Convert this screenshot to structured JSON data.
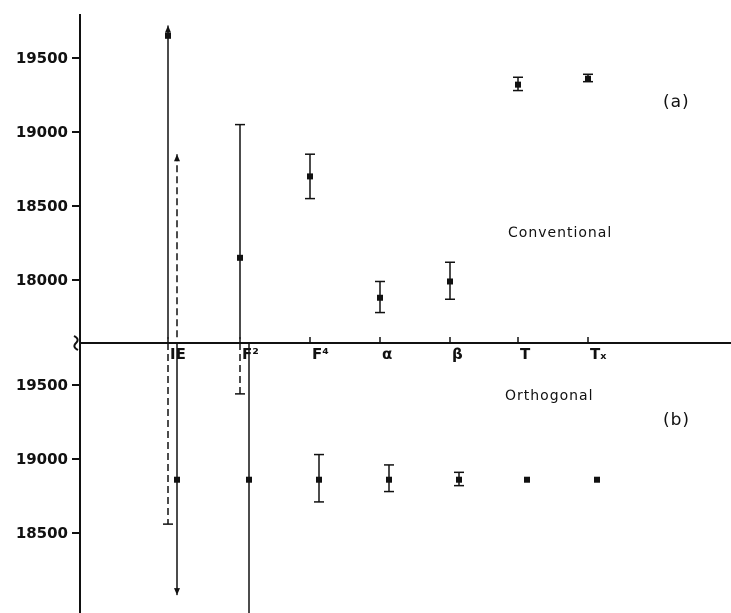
{
  "colors": {
    "ink": "#111111",
    "background": "#ffffff"
  },
  "chart_data": [
    {
      "type": "scatter",
      "panel_label": "(a)",
      "annotation": "Conventional",
      "title": "",
      "xlabel": "",
      "ylabel": "",
      "categories": [
        "IE",
        "F²",
        "F⁴",
        "α",
        "β",
        "T",
        "Tₓ"
      ],
      "yticks": [
        18000,
        18500,
        19000,
        19500
      ],
      "ytick_labels": [
        "18000",
        "18500",
        "19000",
        "19500"
      ],
      "ylim": [
        17600,
        19800
      ],
      "grid": false,
      "points": [
        {
          "category": "IE",
          "offset": 0,
          "value": 19650,
          "low": 17600,
          "high": 19720,
          "style": "solid",
          "cap_high": "arrow",
          "cap_low": "none",
          "marker": true
        },
        {
          "category": "IE",
          "offset": -1,
          "value": null,
          "low": 17600,
          "high": 18850,
          "style": "dashed",
          "cap_high": "arrow",
          "cap_low": "none",
          "marker": false
        },
        {
          "category": "F²",
          "offset": 0,
          "value": 18150,
          "low": 17600,
          "high": 19050,
          "style": "solid",
          "cap_high": "bar",
          "cap_low": "none",
          "marker": true
        },
        {
          "category": "F⁴",
          "offset": 0,
          "value": 18700,
          "low": 18550,
          "high": 18850,
          "style": "solid",
          "cap_high": "bar",
          "cap_low": "bar",
          "marker": true
        },
        {
          "category": "α",
          "offset": 0,
          "value": 17880,
          "low": 17780,
          "high": 17990,
          "style": "solid",
          "cap_high": "bar",
          "cap_low": "bar",
          "marker": true
        },
        {
          "category": "β",
          "offset": 0,
          "value": 17990,
          "low": 17870,
          "high": 18120,
          "style": "solid",
          "cap_high": "bar",
          "cap_low": "bar",
          "marker": true
        },
        {
          "category": "T",
          "offset": 0,
          "value": 19320,
          "low": 19280,
          "high": 19370,
          "style": "solid",
          "cap_high": "bar",
          "cap_low": "bar",
          "marker": true
        },
        {
          "category": "Tₓ",
          "offset": 0,
          "value": 19360,
          "low": 19340,
          "high": 19390,
          "style": "solid",
          "cap_high": "bar",
          "cap_low": "bar",
          "marker": true
        }
      ]
    },
    {
      "type": "scatter",
      "panel_label": "(b)",
      "annotation": "Orthogonal",
      "title": "",
      "xlabel": "",
      "ylabel": "",
      "categories": [
        "IE",
        "F²",
        "F⁴",
        "α",
        "β",
        "T",
        "Tₓ"
      ],
      "yticks": [
        18500,
        19000,
        19500
      ],
      "ytick_labels": [
        "18500",
        "19000",
        "19500"
      ],
      "ylim": [
        17950,
        19800
      ],
      "grid": false,
      "points": [
        {
          "category": "IE",
          "offset": -1,
          "value": 18860,
          "low": 18080,
          "high": 19800,
          "style": "solid",
          "cap_high": "none",
          "cap_low": "arrow",
          "marker": true
        },
        {
          "category": "IE",
          "offset": 0,
          "value": null,
          "low": 18560,
          "high": 19800,
          "style": "dashed",
          "cap_high": "none",
          "cap_low": "bar",
          "marker": false
        },
        {
          "category": "F²",
          "offset": -1,
          "value": 18860,
          "low": 17950,
          "high": 19800,
          "style": "solid",
          "cap_high": "none",
          "cap_low": "none",
          "marker": true
        },
        {
          "category": "F²",
          "offset": 0,
          "value": null,
          "low": 19440,
          "high": 19800,
          "style": "dashed",
          "cap_high": "none",
          "cap_low": "bar",
          "marker": false
        },
        {
          "category": "F⁴",
          "offset": -1,
          "value": 18860,
          "low": 18710,
          "high": 19030,
          "style": "solid",
          "cap_high": "bar",
          "cap_low": "bar",
          "marker": true
        },
        {
          "category": "α",
          "offset": -1,
          "value": 18860,
          "low": 18780,
          "high": 18960,
          "style": "solid",
          "cap_high": "bar",
          "cap_low": "bar",
          "marker": true
        },
        {
          "category": "β",
          "offset": -1,
          "value": 18860,
          "low": 18820,
          "high": 18910,
          "style": "solid",
          "cap_high": "bar",
          "cap_low": "bar",
          "marker": true
        },
        {
          "category": "T",
          "offset": -1,
          "value": 18860,
          "low": 18860,
          "high": 18860,
          "style": "solid",
          "cap_high": "none",
          "cap_low": "none",
          "marker": true
        },
        {
          "category": "Tₓ",
          "offset": -1,
          "value": 18860,
          "low": 18860,
          "high": 18860,
          "style": "solid",
          "cap_high": "none",
          "cap_low": "none",
          "marker": true
        }
      ]
    }
  ]
}
